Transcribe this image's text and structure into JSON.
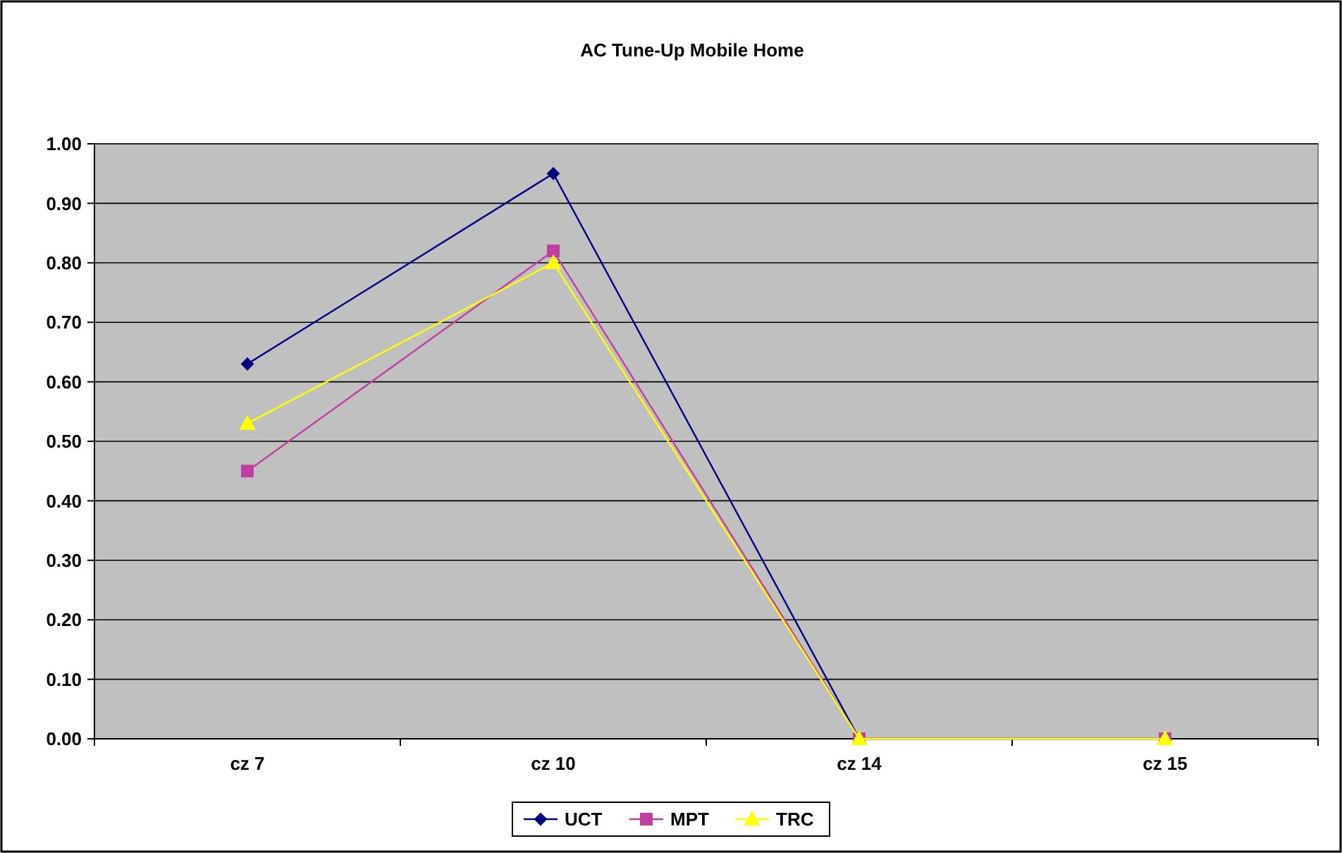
{
  "chart_data": {
    "type": "line",
    "title": "AC Tune-Up Mobile Home",
    "categories": [
      "cz 7",
      "cz 10",
      "cz 14",
      "cz 15"
    ],
    "series": [
      {
        "name": "UCT",
        "color": "#000080",
        "marker": "diamond",
        "values": [
          0.63,
          0.95,
          0,
          0
        ]
      },
      {
        "name": "MPT",
        "color": "#c040a0",
        "marker": "square",
        "values": [
          0.45,
          0.82,
          0,
          0
        ]
      },
      {
        "name": "TRC",
        "color": "#ffff00",
        "marker": "triangle",
        "values": [
          0.53,
          0.8,
          0,
          0
        ]
      }
    ],
    "ylim": [
      0,
      1
    ],
    "yticks": [
      {
        "value": 0,
        "label": "0.00"
      },
      {
        "value": 0.1,
        "label": "0.10"
      },
      {
        "value": 0.2,
        "label": "0.20"
      },
      {
        "value": 0.3,
        "label": "0.30"
      },
      {
        "value": 0.4,
        "label": "0.40"
      },
      {
        "value": 0.5,
        "label": "0.50"
      },
      {
        "value": 0.6,
        "label": "0.60"
      },
      {
        "value": 0.7,
        "label": "0.70"
      },
      {
        "value": 0.8,
        "label": "0.80"
      },
      {
        "value": 0.9,
        "label": "0.90"
      },
      {
        "value": 1,
        "label": "1.00"
      }
    ],
    "grid": "y",
    "legend": "bottom"
  }
}
